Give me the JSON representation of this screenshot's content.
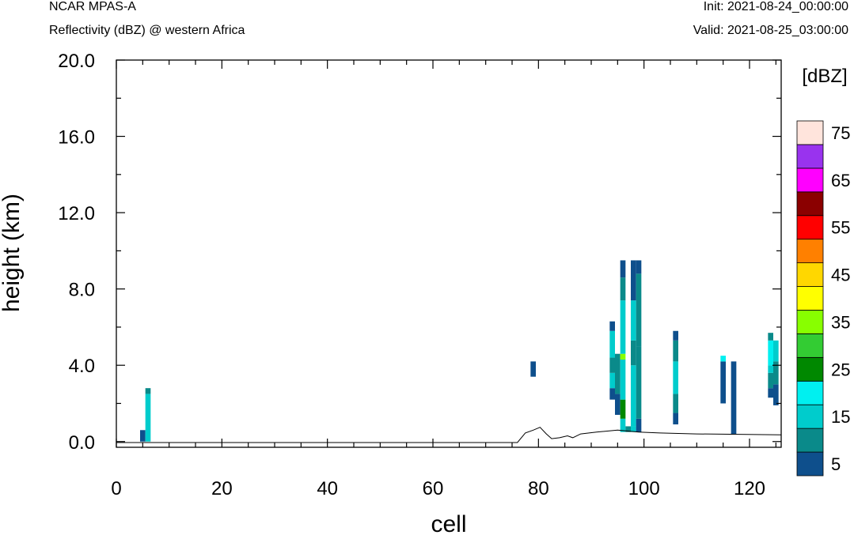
{
  "header": {
    "model": "NCAR MPAS-A",
    "field": "Reflectivity (dBZ) @ western Africa",
    "init": "Init: 2021-08-24_00:00:00",
    "valid": "Valid: 2021-08-25_03:00:00"
  },
  "chart_data": {
    "type": "heatmap",
    "xlabel": "cell",
    "ylabel": "height (km)",
    "xlim": [
      0,
      126
    ],
    "ylim": [
      -0.3,
      20.0
    ],
    "xticks": [
      0,
      20,
      40,
      60,
      80,
      100,
      120
    ],
    "yticks": [
      0.0,
      4.0,
      8.0,
      12.0,
      16.0,
      20.0
    ],
    "ytick_labels": [
      "0.0",
      "4.0",
      "8.0",
      "12.0",
      "16.0",
      "20.0"
    ],
    "colorbar": {
      "unit": "[dBZ]",
      "levels": [
        5,
        10,
        15,
        20,
        25,
        30,
        35,
        40,
        45,
        50,
        55,
        60,
        65,
        70,
        75
      ],
      "labels": [
        "5",
        "15",
        "25",
        "35",
        "45",
        "55",
        "65",
        "75"
      ],
      "colors": [
        "#0e4f8c",
        "#0a8a8a",
        "#00cccc",
        "#00f0f0",
        "#008800",
        "#33cc33",
        "#88ff00",
        "#ffff00",
        "#ffd700",
        "#ff8000",
        "#ff0000",
        "#8b0000",
        "#ff00ff",
        "#9933ee",
        "#ffe4dc"
      ]
    },
    "terrain": [
      [
        0,
        -0.05
      ],
      [
        76,
        -0.05
      ],
      [
        77.5,
        0.45
      ],
      [
        79,
        0.6
      ],
      [
        80.3,
        0.75
      ],
      [
        81.5,
        0.4
      ],
      [
        82.5,
        0.15
      ],
      [
        84,
        0.2
      ],
      [
        85.5,
        0.3
      ],
      [
        86.5,
        0.2
      ],
      [
        88,
        0.4
      ],
      [
        91,
        0.5
      ],
      [
        95,
        0.6
      ],
      [
        99,
        0.5
      ],
      [
        103,
        0.45
      ],
      [
        110,
        0.4
      ],
      [
        118,
        0.38
      ],
      [
        126,
        0.35
      ]
    ],
    "reflectivity_columns": [
      {
        "cell": 5,
        "segments": [
          {
            "z0": 0.0,
            "z1": 0.6,
            "dbz": 5
          }
        ]
      },
      {
        "cell": 6,
        "segments": [
          {
            "z0": 0.0,
            "z1": 2.5,
            "dbz": 15
          },
          {
            "z0": 2.5,
            "z1": 2.8,
            "dbz": 10
          }
        ]
      },
      {
        "cell": 79,
        "segments": [
          {
            "z0": 3.4,
            "z1": 4.2,
            "dbz": 5
          }
        ]
      },
      {
        "cell": 94,
        "segments": [
          {
            "z0": 2.2,
            "z1": 2.8,
            "dbz": 5
          },
          {
            "z0": 2.8,
            "z1": 3.6,
            "dbz": 15
          },
          {
            "z0": 3.6,
            "z1": 4.4,
            "dbz": 10
          },
          {
            "z0": 4.4,
            "z1": 5.8,
            "dbz": 15
          },
          {
            "z0": 5.8,
            "z1": 6.3,
            "dbz": 5
          }
        ]
      },
      {
        "cell": 95,
        "segments": [
          {
            "z0": 1.4,
            "z1": 2.5,
            "dbz": 5
          },
          {
            "z0": 2.5,
            "z1": 4.6,
            "dbz": 10
          }
        ]
      },
      {
        "cell": 96,
        "segments": [
          {
            "z0": 0.5,
            "z1": 1.2,
            "dbz": 15
          },
          {
            "z0": 1.2,
            "z1": 2.2,
            "dbz": 25
          },
          {
            "z0": 2.2,
            "z1": 4.3,
            "dbz": 15
          },
          {
            "z0": 4.3,
            "z1": 4.6,
            "dbz": 35
          },
          {
            "z0": 4.6,
            "z1": 7.4,
            "dbz": 15
          },
          {
            "z0": 7.4,
            "z1": 8.6,
            "dbz": 10
          },
          {
            "z0": 8.6,
            "z1": 9.5,
            "dbz": 5
          }
        ]
      },
      {
        "cell": 97,
        "segments": [
          {
            "z0": 0.5,
            "z1": 0.8,
            "dbz": 10
          }
        ]
      },
      {
        "cell": 98,
        "segments": [
          {
            "z0": 0.5,
            "z1": 0.8,
            "dbz": 15
          },
          {
            "z0": 0.8,
            "z1": 4.0,
            "dbz": 15
          },
          {
            "z0": 4.0,
            "z1": 5.3,
            "dbz": 10
          },
          {
            "z0": 5.3,
            "z1": 7.4,
            "dbz": 15
          },
          {
            "z0": 7.4,
            "z1": 9.5,
            "dbz": 5
          }
        ]
      },
      {
        "cell": 99,
        "segments": [
          {
            "z0": 0.5,
            "z1": 1.2,
            "dbz": 5
          },
          {
            "z0": 1.2,
            "z1": 5.0,
            "dbz": 10
          },
          {
            "z0": 5.0,
            "z1": 8.8,
            "dbz": 10
          },
          {
            "z0": 8.8,
            "z1": 9.5,
            "dbz": 5
          }
        ]
      },
      {
        "cell": 106,
        "segments": [
          {
            "z0": 0.9,
            "z1": 1.5,
            "dbz": 5
          },
          {
            "z0": 1.5,
            "z1": 2.5,
            "dbz": 10
          },
          {
            "z0": 2.5,
            "z1": 4.2,
            "dbz": 15
          },
          {
            "z0": 4.2,
            "z1": 5.3,
            "dbz": 10
          },
          {
            "z0": 5.3,
            "z1": 5.8,
            "dbz": 5
          }
        ]
      },
      {
        "cell": 115,
        "segments": [
          {
            "z0": 2.0,
            "z1": 4.2,
            "dbz": 5
          },
          {
            "z0": 4.2,
            "z1": 4.5,
            "dbz": 20
          }
        ]
      },
      {
        "cell": 117,
        "segments": [
          {
            "z0": 0.4,
            "z1": 4.2,
            "dbz": 5
          }
        ]
      },
      {
        "cell": 124,
        "segments": [
          {
            "z0": 2.3,
            "z1": 2.8,
            "dbz": 5
          },
          {
            "z0": 2.8,
            "z1": 3.6,
            "dbz": 10
          },
          {
            "z0": 3.6,
            "z1": 4.0,
            "dbz": 15
          },
          {
            "z0": 4.0,
            "z1": 5.3,
            "dbz": 20
          },
          {
            "z0": 5.3,
            "z1": 5.7,
            "dbz": 10
          }
        ]
      },
      {
        "cell": 125,
        "segments": [
          {
            "z0": 1.9,
            "z1": 3.0,
            "dbz": 5
          },
          {
            "z0": 3.0,
            "z1": 4.2,
            "dbz": 10
          },
          {
            "z0": 4.2,
            "z1": 5.3,
            "dbz": 15
          }
        ]
      }
    ]
  }
}
